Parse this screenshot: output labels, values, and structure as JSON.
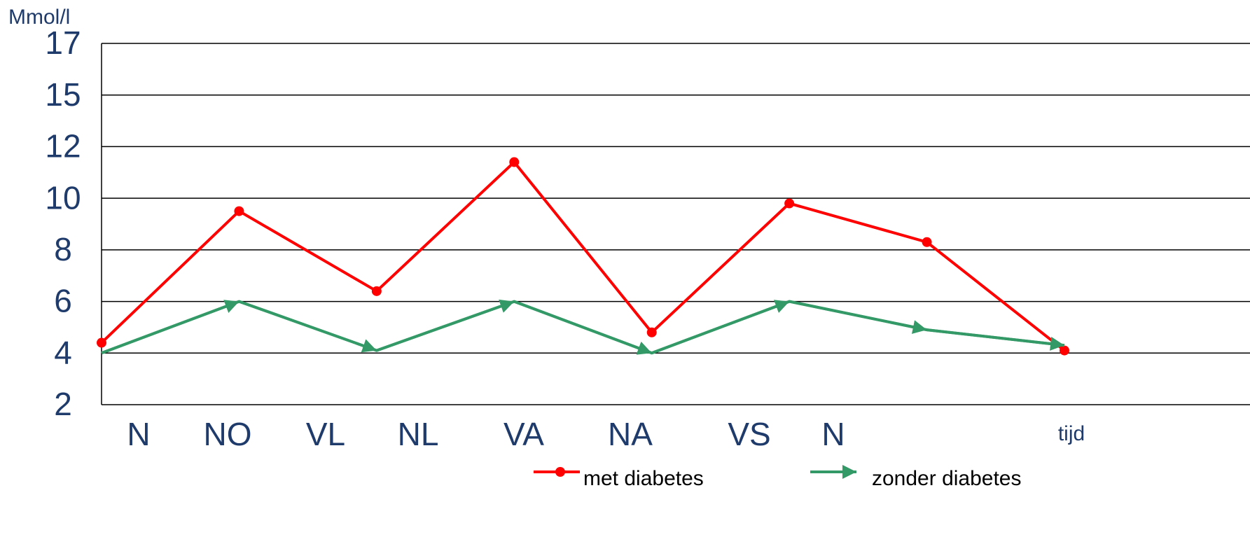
{
  "chart_data": {
    "type": "line",
    "y_label": "Mmol/l",
    "x_label": "tijd",
    "categories": [
      "N",
      "NO",
      "VL",
      "NL",
      "VA",
      "NA",
      "VS",
      "N"
    ],
    "series": [
      {
        "name": "met diabetes",
        "color": "#ff0000",
        "values": [
          4.4,
          9.5,
          6.4,
          11.4,
          4.8,
          9.8,
          8.3,
          4.1
        ]
      },
      {
        "name": "zonder diabetes",
        "color": "#339966",
        "values": [
          4.0,
          6.0,
          4.1,
          6.0,
          4.0,
          6.0,
          4.9,
          4.3
        ]
      }
    ],
    "ylim": [
      2,
      17
    ],
    "yticks": [
      2,
      4,
      6,
      8,
      10,
      12,
      15,
      17
    ],
    "grid": true
  }
}
